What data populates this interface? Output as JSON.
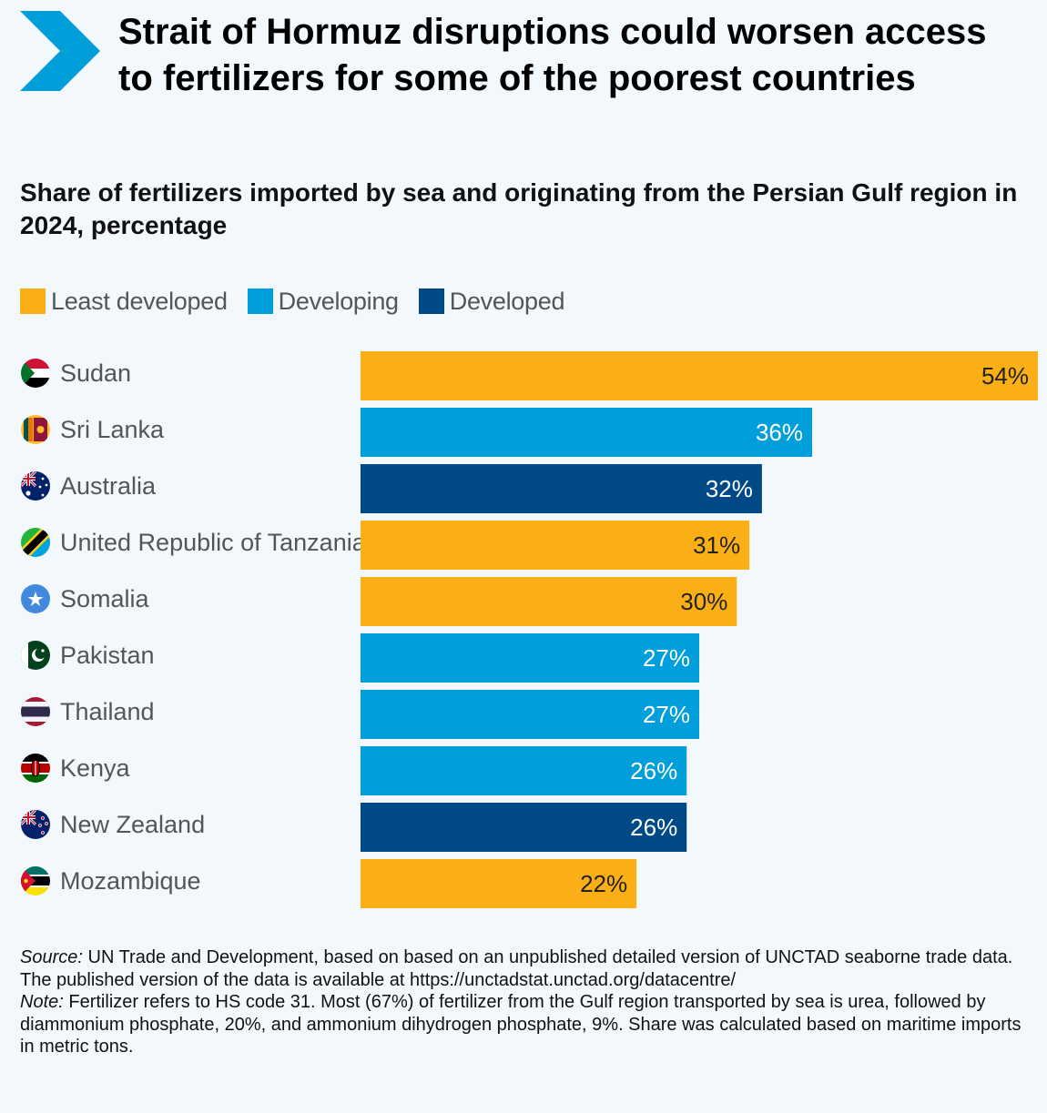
{
  "header": {
    "title": "Strait of Hormuz disruptions could worsen access to fertilizers for some of the poorest countries",
    "subtitle": "Share of fertilizers imported by sea and originating from the Persian Gulf region in 2024, percentage"
  },
  "colors": {
    "accent": "#009edb",
    "least_developed": "#fbaf17",
    "developing": "#009edb",
    "developed": "#004987"
  },
  "legend": [
    {
      "label": "Least developed",
      "color": "#fbaf17"
    },
    {
      "label": "Developing",
      "color": "#009edb"
    },
    {
      "label": "Developed",
      "color": "#004987"
    }
  ],
  "chart_data": {
    "type": "bar",
    "orientation": "horizontal",
    "title": "Share of fertilizers imported by sea and originating from the Persian Gulf region in 2024, percentage",
    "xlabel": "",
    "ylabel": "",
    "xlim": [
      0,
      54
    ],
    "grid": false,
    "legend_position": "top-left",
    "categories": [
      "Sudan",
      "Sri Lanka",
      "Australia",
      "United Republic of Tanzania",
      "Somalia",
      "Pakistan",
      "Thailand",
      "Kenya",
      "New Zealand",
      "Mozambique"
    ],
    "values": [
      54,
      36,
      32,
      31,
      30,
      27,
      27,
      26,
      26,
      22
    ],
    "value_labels": [
      "54%",
      "36%",
      "32%",
      "31%",
      "30%",
      "27%",
      "27%",
      "26%",
      "26%",
      "22%"
    ],
    "groups": [
      "Least developed",
      "Developing",
      "Developed",
      "Least developed",
      "Least developed",
      "Developing",
      "Developing",
      "Developing",
      "Developed",
      "Least developed"
    ],
    "flag_icons": [
      "sudan-flag-icon",
      "sri-lanka-flag-icon",
      "australia-flag-icon",
      "tanzania-flag-icon",
      "somalia-flag-icon",
      "pakistan-flag-icon",
      "thailand-flag-icon",
      "kenya-flag-icon",
      "new-zealand-flag-icon",
      "mozambique-flag-icon"
    ]
  },
  "footer": {
    "source_label": "Source:",
    "source_text": " UN Trade and Development, based on based on an unpublished detailed version of UNCTAD seaborne trade data. The published version of the data is available at https://unctadstat.unctad.org/datacentre/",
    "note_label": "Note:",
    "note_text": " Fertilizer refers to HS code 31. Most (67%) of fertilizer from the Gulf region transported by sea is urea, followed by diammonium phosphate, 20%, and ammonium dihydrogen phosphate, 9%. Share was calculated based on maritime imports in metric tons."
  }
}
